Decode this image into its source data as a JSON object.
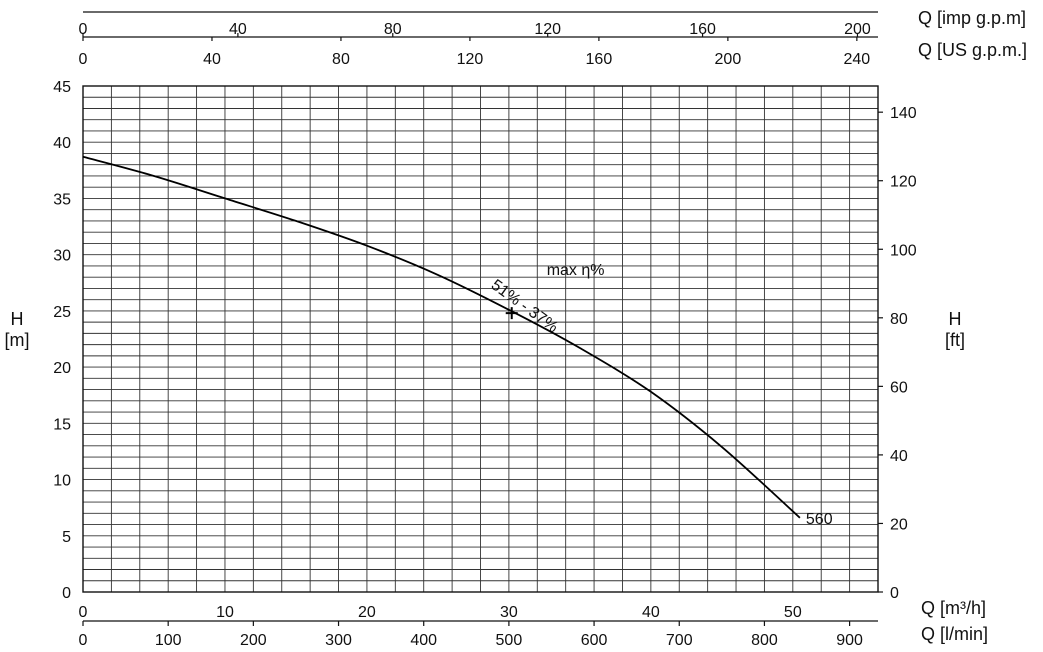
{
  "chart_data": {
    "type": "line",
    "series": [
      {
        "name": "560",
        "x": [
          0,
          5,
          10,
          15,
          20,
          25,
          30,
          35,
          40,
          45,
          50.5
        ],
        "y": [
          38.7,
          37.0,
          35.0,
          33.0,
          30.8,
          28.2,
          25.1,
          21.7,
          17.8,
          12.9,
          6.6
        ]
      }
    ],
    "x": {
      "label": "Q [m³/h]",
      "range": [
        0,
        56
      ],
      "ticks": [
        0,
        10,
        20,
        30,
        40,
        50
      ]
    },
    "y": {
      "label_line1": "H",
      "label_line2": "[m]",
      "range": [
        0,
        45
      ],
      "ticks": [
        0,
        5,
        10,
        15,
        20,
        25,
        30,
        35,
        40,
        45
      ]
    },
    "y_right": {
      "label_line1": "H",
      "label_line2": "[ft]",
      "ticks": [
        0,
        20,
        40,
        60,
        80,
        100,
        120,
        140
      ]
    },
    "x_bottom2": {
      "label": "Q [l/min]",
      "ticks": [
        0,
        100,
        200,
        300,
        400,
        500,
        600,
        700,
        800,
        900
      ]
    },
    "x_top1": {
      "label": "Q [imp g.p.m]",
      "ticks": [
        0,
        40,
        80,
        120,
        160,
        200
      ]
    },
    "x_top2": {
      "label": "Q [US g.p.m.]",
      "ticks": [
        0,
        40,
        80,
        120,
        160,
        200,
        240
      ]
    },
    "best_efficiency_point": {
      "x": 30.2,
      "y": 24.8,
      "label": "51% - 37%"
    },
    "annotation": "max η%",
    "grid": true
  }
}
